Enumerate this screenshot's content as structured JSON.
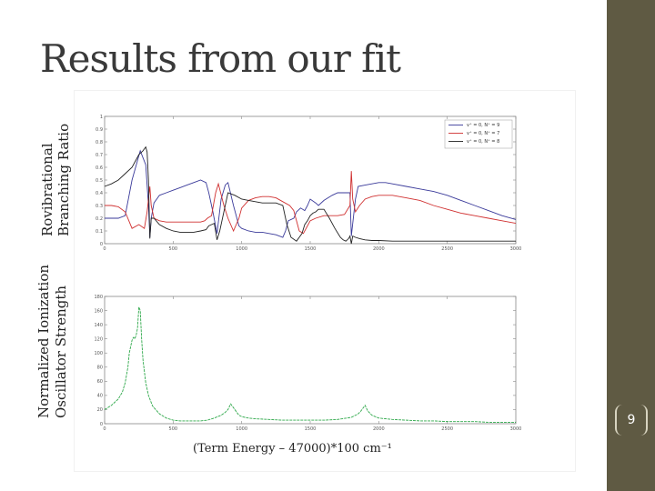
{
  "slide": {
    "title": "Results from our fit",
    "page_number": "9",
    "colors": {
      "accent_bar": "#5f5a43",
      "title": "#3a3a3a"
    }
  },
  "chart_data": [
    {
      "type": "line",
      "ylabel_line1": "Rovibrational",
      "ylabel_line2": "Branching Ratio",
      "xlim": [
        0,
        3000
      ],
      "ylim": [
        0,
        1
      ],
      "x_ticks": [
        "0",
        "500",
        "1000",
        "1500",
        "2000",
        "2500",
        "3000"
      ],
      "y_ticks": [
        "0",
        "0.1",
        "0.2",
        "0.3",
        "0.4",
        "0.5",
        "0.6",
        "0.7",
        "0.8",
        "0.9",
        "1"
      ],
      "legend_position": "top-right",
      "series": [
        {
          "name": "v⁺ = 0, N⁺ = 9",
          "color": "#3a3a9a",
          "x": [
            0,
            50,
            100,
            150,
            200,
            260,
            300,
            320,
            330,
            340,
            360,
            400,
            450,
            500,
            550,
            600,
            650,
            700,
            740,
            760,
            790,
            820,
            850,
            880,
            900,
            940,
            980,
            1000,
            1050,
            1100,
            1150,
            1200,
            1250,
            1300,
            1320,
            1340,
            1380,
            1400,
            1430,
            1460,
            1480,
            1500,
            1540,
            1560,
            1600,
            1660,
            1700,
            1760,
            1790,
            1800,
            1830,
            1850,
            1900,
            1950,
            2000,
            2050,
            2100,
            2200,
            2300,
            2400,
            2500,
            2600,
            2700,
            2800,
            2900,
            3000
          ],
          "y": [
            0.2,
            0.2,
            0.2,
            0.22,
            0.5,
            0.73,
            0.62,
            0.3,
            0.05,
            0.2,
            0.32,
            0.38,
            0.4,
            0.42,
            0.44,
            0.46,
            0.48,
            0.5,
            0.48,
            0.4,
            0.25,
            0.08,
            0.35,
            0.46,
            0.48,
            0.3,
            0.14,
            0.12,
            0.1,
            0.09,
            0.09,
            0.08,
            0.07,
            0.05,
            0.1,
            0.18,
            0.2,
            0.25,
            0.28,
            0.26,
            0.3,
            0.35,
            0.32,
            0.3,
            0.34,
            0.38,
            0.4,
            0.4,
            0.4,
            0.06,
            0.35,
            0.45,
            0.46,
            0.47,
            0.48,
            0.48,
            0.47,
            0.45,
            0.43,
            0.41,
            0.38,
            0.34,
            0.3,
            0.26,
            0.22,
            0.19
          ]
        },
        {
          "name": "v⁺ = 0, N⁺ = 7",
          "color": "#d03030",
          "x": [
            0,
            50,
            100,
            150,
            200,
            250,
            290,
            310,
            330,
            340,
            360,
            400,
            450,
            500,
            550,
            600,
            650,
            700,
            730,
            750,
            780,
            810,
            830,
            870,
            900,
            940,
            980,
            1000,
            1050,
            1100,
            1150,
            1200,
            1250,
            1300,
            1350,
            1380,
            1420,
            1450,
            1480,
            1500,
            1540,
            1600,
            1650,
            1700,
            1750,
            1790,
            1800,
            1810,
            1830,
            1860,
            1900,
            1950,
            2000,
            2100,
            2200,
            2300,
            2400,
            2500,
            2600,
            2700,
            2800,
            2900,
            3000
          ],
          "y": [
            0.3,
            0.3,
            0.29,
            0.25,
            0.12,
            0.15,
            0.12,
            0.25,
            0.45,
            0.3,
            0.2,
            0.18,
            0.17,
            0.17,
            0.17,
            0.17,
            0.17,
            0.17,
            0.18,
            0.2,
            0.22,
            0.4,
            0.47,
            0.3,
            0.2,
            0.1,
            0.2,
            0.28,
            0.34,
            0.36,
            0.37,
            0.37,
            0.36,
            0.33,
            0.3,
            0.26,
            0.1,
            0.08,
            0.14,
            0.18,
            0.2,
            0.22,
            0.22,
            0.22,
            0.23,
            0.3,
            0.57,
            0.35,
            0.25,
            0.3,
            0.35,
            0.37,
            0.38,
            0.38,
            0.36,
            0.34,
            0.3,
            0.27,
            0.24,
            0.22,
            0.2,
            0.18,
            0.16
          ]
        },
        {
          "name": "v⁺ = 0, N⁺ = 8",
          "color": "#222222",
          "x": [
            0,
            50,
            100,
            150,
            200,
            230,
            250,
            280,
            300,
            310,
            320,
            330,
            340,
            360,
            400,
            450,
            500,
            550,
            600,
            650,
            700,
            740,
            760,
            780,
            800,
            820,
            840,
            860,
            880,
            900,
            950,
            1000,
            1050,
            1100,
            1150,
            1200,
            1250,
            1300,
            1330,
            1360,
            1400,
            1420,
            1440,
            1460,
            1480,
            1500,
            1520,
            1540,
            1560,
            1600,
            1640,
            1680,
            1720,
            1740,
            1760,
            1780,
            1790,
            1800,
            1810,
            1830,
            1860,
            1900,
            1950,
            2000,
            2100,
            2200,
            2300,
            2400,
            2500,
            2600,
            2700,
            2800,
            2900,
            3000
          ],
          "y": [
            0.45,
            0.47,
            0.5,
            0.55,
            0.6,
            0.66,
            0.7,
            0.73,
            0.76,
            0.72,
            0.5,
            0.04,
            0.2,
            0.2,
            0.15,
            0.12,
            0.1,
            0.09,
            0.09,
            0.09,
            0.1,
            0.11,
            0.14,
            0.15,
            0.16,
            0.03,
            0.1,
            0.2,
            0.3,
            0.4,
            0.38,
            0.35,
            0.34,
            0.33,
            0.32,
            0.32,
            0.32,
            0.3,
            0.15,
            0.05,
            0.02,
            0.05,
            0.08,
            0.15,
            0.18,
            0.22,
            0.24,
            0.25,
            0.27,
            0.27,
            0.2,
            0.12,
            0.05,
            0.03,
            0.02,
            0.04,
            0.06,
            0.0,
            0.06,
            0.05,
            0.04,
            0.03,
            0.025,
            0.025,
            0.02,
            0.02,
            0.02,
            0.02,
            0.02,
            0.02,
            0.02,
            0.02,
            0.02,
            0.02
          ]
        }
      ]
    },
    {
      "type": "line",
      "ylabel_line1": "Normalized Ionization",
      "ylabel_line2": "Oscillator Strength",
      "xlabel": "(Term Energy – 47000)*100 cm⁻¹",
      "xlim": [
        0,
        3000
      ],
      "ylim": [
        0,
        180
      ],
      "x_ticks": [
        "0",
        "500",
        "1000",
        "1500",
        "2000",
        "2500",
        "3000"
      ],
      "y_ticks": [
        "0",
        "20",
        "40",
        "60",
        "80",
        "100",
        "120",
        "140",
        "160",
        "180"
      ],
      "series": [
        {
          "color": "#2ea84a",
          "x": [
            0,
            50,
            100,
            130,
            150,
            170,
            180,
            200,
            210,
            220,
            230,
            240,
            250,
            260,
            270,
            280,
            300,
            320,
            350,
            400,
            450,
            500,
            550,
            600,
            650,
            700,
            750,
            800,
            850,
            880,
            900,
            920,
            950,
            980,
            1000,
            1050,
            1100,
            1200,
            1300,
            1400,
            1500,
            1600,
            1700,
            1800,
            1850,
            1870,
            1900,
            1920,
            1950,
            2000,
            2100,
            2200,
            2300,
            2400,
            2500,
            2600,
            2700,
            2800,
            2900,
            3000
          ],
          "y": [
            20,
            26,
            35,
            45,
            58,
            80,
            100,
            118,
            122,
            120,
            125,
            135,
            165,
            160,
            120,
            90,
            58,
            40,
            25,
            14,
            8,
            5,
            4,
            4,
            4,
            4,
            5,
            8,
            12,
            16,
            20,
            28,
            20,
            12,
            10,
            8,
            7,
            6,
            5,
            5,
            5,
            5,
            6,
            9,
            14,
            18,
            26,
            18,
            12,
            8,
            6,
            5,
            4,
            4,
            3,
            3,
            3,
            2,
            2,
            2
          ]
        }
      ]
    }
  ]
}
